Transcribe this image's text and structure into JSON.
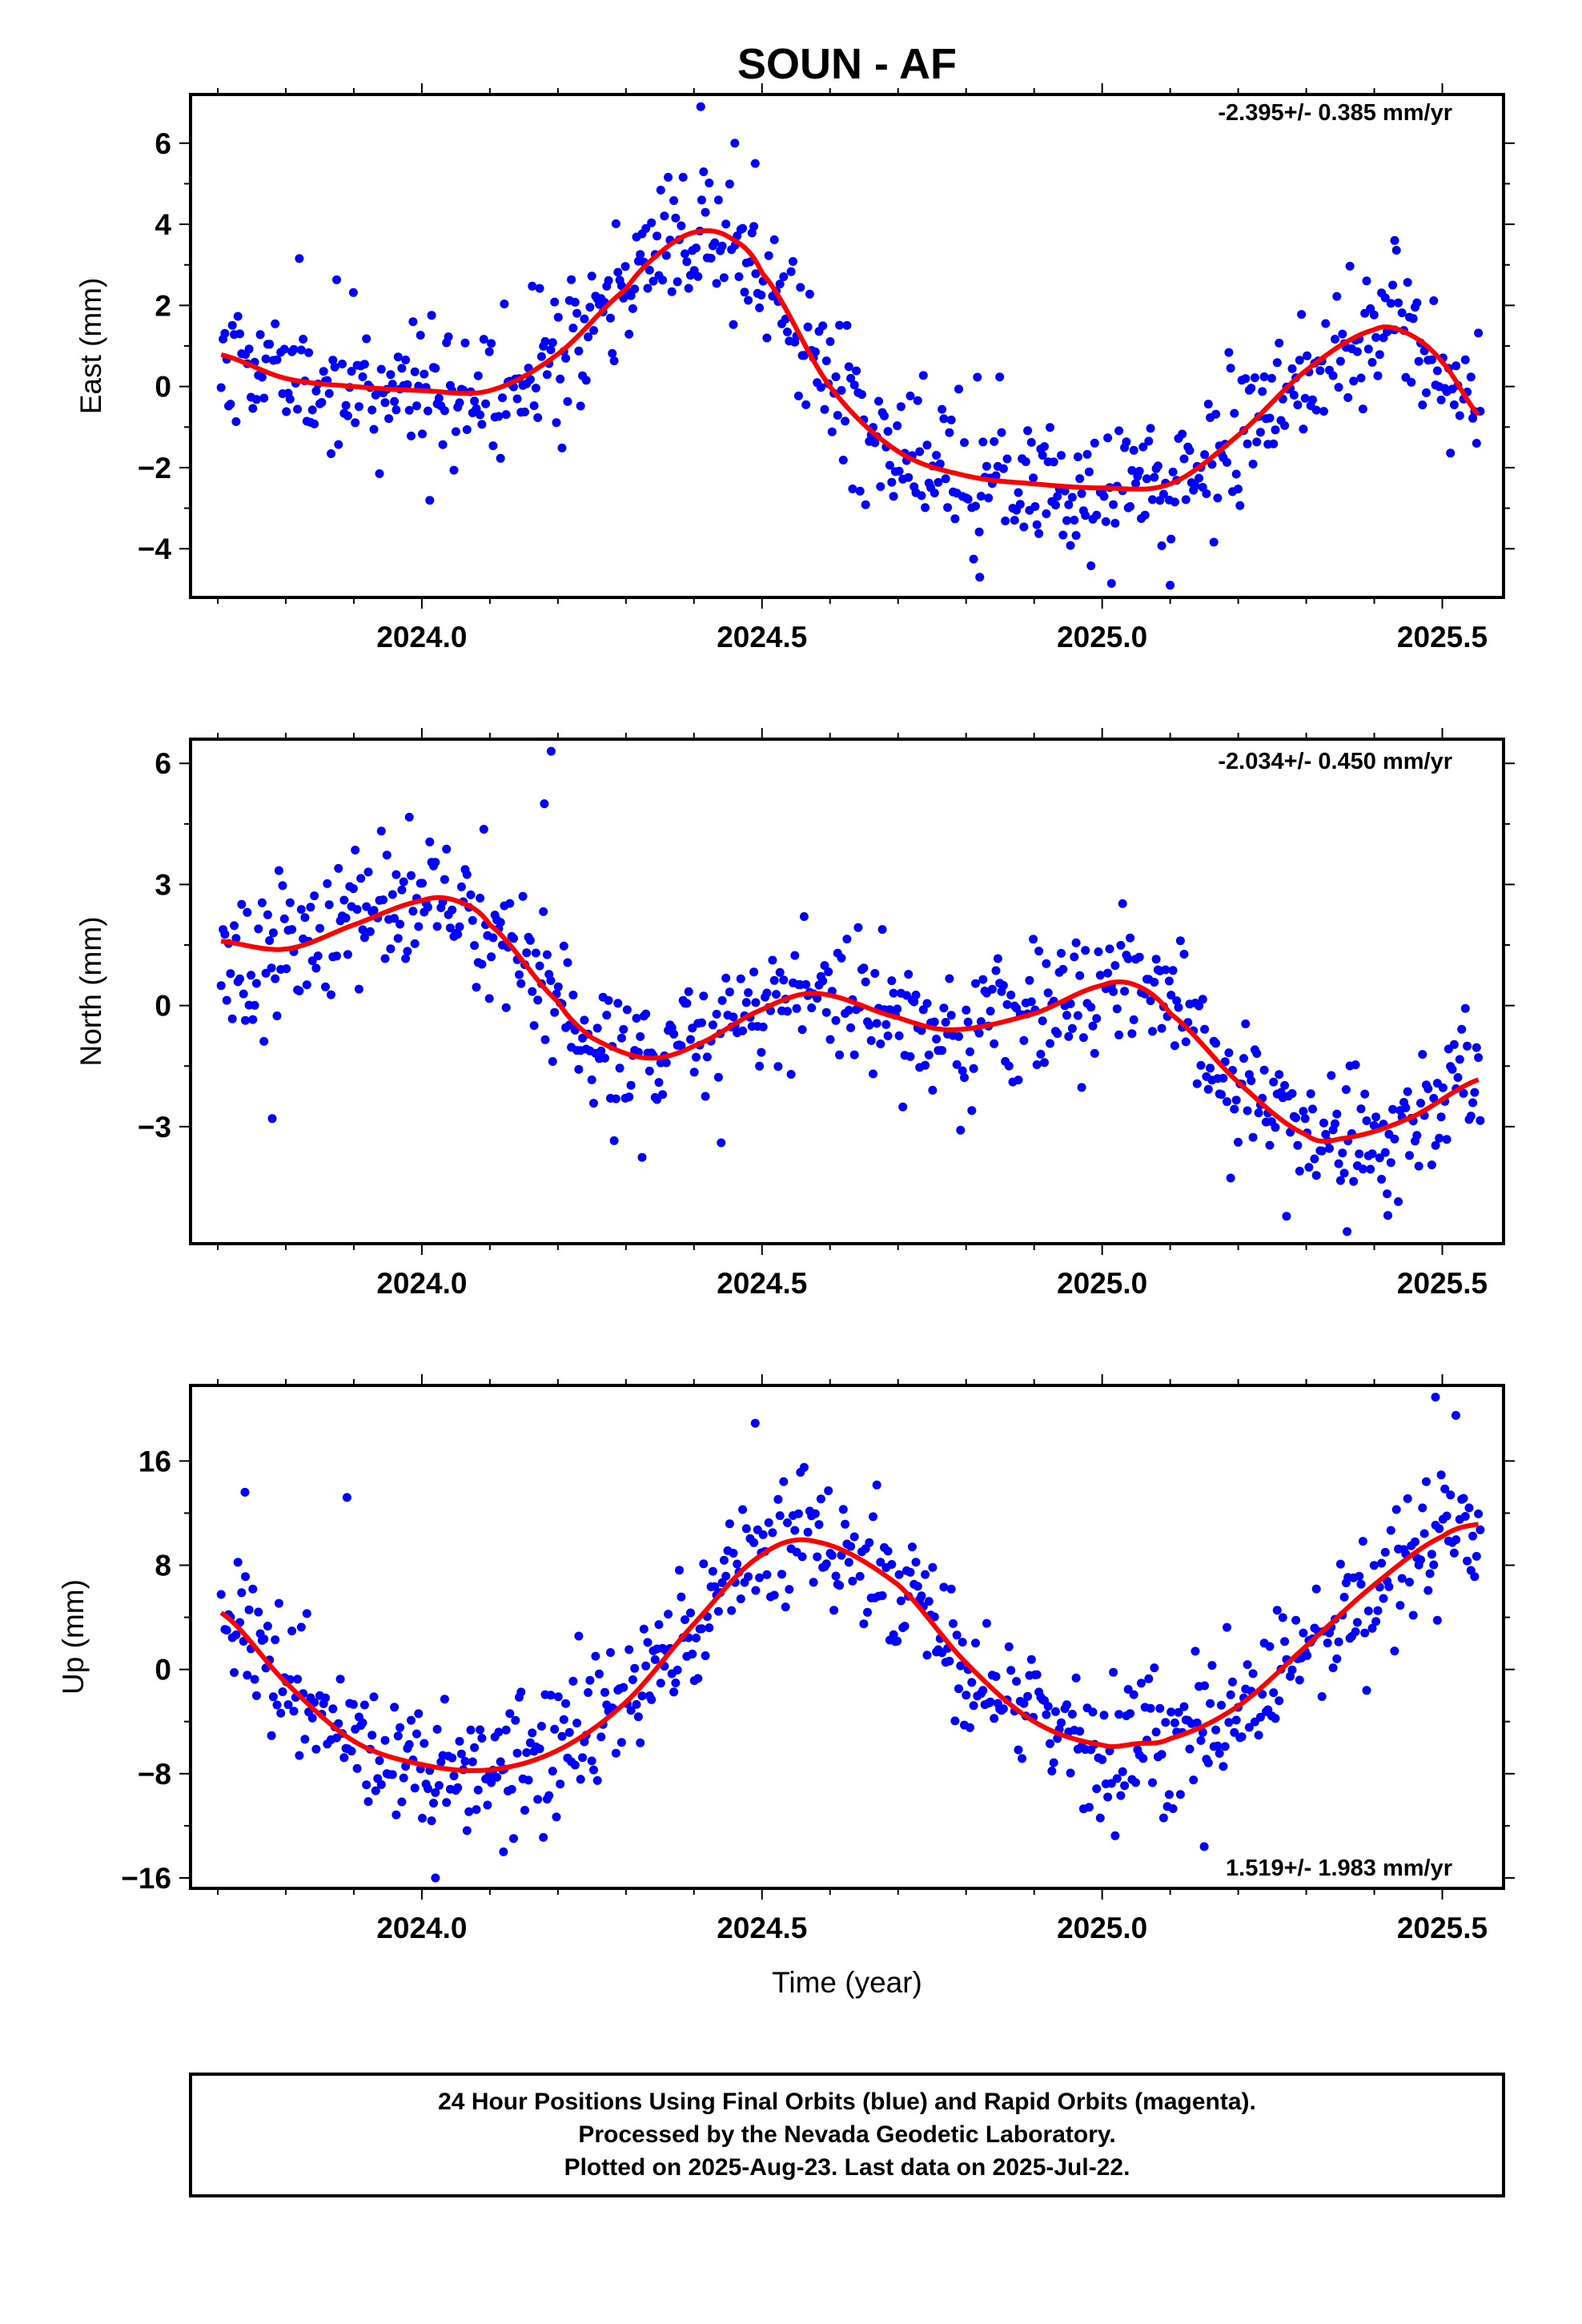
{
  "title": "SOUN - AF",
  "colors": {
    "final_orbits": "#0000ff",
    "fit": "#ff0000"
  },
  "footer": {
    "line1": "24 Hour Positions Using Final Orbits (blue) and Rapid Orbits (magenta).",
    "line2": "Processed by the Nevada Geodetic Laboratory.",
    "line3": "Plotted on 2025-Aug-23. Last data on 2025-Jul-22."
  },
  "chart_data": [
    {
      "type": "scatter",
      "ylabel": "East (mm)",
      "xlabel": "",
      "rate_label": "-2.395+/- 0.385 mm/yr",
      "xlim": [
        2023.66,
        2025.59
      ],
      "ylim": [
        -5.2,
        7.2
      ],
      "xticks": [
        "2024.0",
        "2024.5",
        "2025.0",
        "2025.5"
      ],
      "yticks": [
        6,
        4,
        2,
        0,
        -2,
        -4
      ],
      "yticklabels": [
        "6",
        "4",
        "2",
        "0",
        "−2",
        "−4"
      ],
      "fit_knots": {
        "x": [
          2023.7,
          2023.8,
          2023.9,
          2024.0,
          2024.1,
          2024.2,
          2024.3,
          2024.35,
          2024.4,
          2024.45,
          2024.5,
          2024.6,
          2024.7,
          2024.8,
          2024.9,
          2025.0,
          2025.1,
          2025.2,
          2025.3,
          2025.4,
          2025.45,
          2025.5,
          2025.56
        ],
        "y": [
          0.8,
          0.2,
          0.0,
          -0.1,
          -0.1,
          0.8,
          2.4,
          3.3,
          3.8,
          3.7,
          2.8,
          0.0,
          -1.6,
          -2.2,
          -2.4,
          -2.5,
          -2.4,
          -1.2,
          0.4,
          1.4,
          1.3,
          0.6,
          -0.8
        ]
      },
      "scatter": {
        "noise": 0.85,
        "outliers": [
          [
            2024.41,
            6.9
          ],
          [
            2024.46,
            6.0
          ],
          [
            2024.49,
            5.5
          ],
          [
            2025.43,
            3.6
          ],
          [
            2025.1,
            -4.9
          ],
          [
            2024.82,
            -4.7
          ]
        ],
        "seed": 11
      }
    },
    {
      "type": "scatter",
      "ylabel": "North (mm)",
      "xlabel": "",
      "rate_label": "-2.034+/- 0.450 mm/yr",
      "xlim": [
        2023.66,
        2025.59
      ],
      "ylim": [
        -5.9,
        6.6
      ],
      "xticks": [
        "2024.0",
        "2024.5",
        "2025.0",
        "2025.5"
      ],
      "yticks": [
        6,
        3,
        0,
        -3
      ],
      "yticklabels": [
        "6",
        "3",
        "0",
        "−3"
      ],
      "fit_knots": {
        "x": [
          2023.7,
          2023.8,
          2023.9,
          2024.0,
          2024.05,
          2024.1,
          2024.2,
          2024.25,
          2024.33,
          2024.4,
          2024.5,
          2024.58,
          2024.7,
          2024.78,
          2024.9,
          2025.0,
          2025.05,
          2025.1,
          2025.2,
          2025.3,
          2025.35,
          2025.45,
          2025.56
        ],
        "y": [
          1.6,
          1.4,
          2.0,
          2.6,
          2.6,
          2.0,
          0.1,
          -0.8,
          -1.3,
          -1.0,
          -0.1,
          0.3,
          -0.3,
          -0.6,
          -0.2,
          0.5,
          0.5,
          -0.2,
          -1.9,
          -3.2,
          -3.3,
          -2.8,
          -1.8
        ]
      },
      "scatter": {
        "noise": 0.85,
        "outliers": [
          [
            2024.19,
            6.3
          ],
          [
            2024.18,
            5.0
          ],
          [
            2024.44,
            -3.4
          ],
          [
            2023.78,
            -2.8
          ],
          [
            2025.36,
            -5.6
          ],
          [
            2025.42,
            -5.2
          ]
        ],
        "seed": 23
      }
    },
    {
      "type": "scatter",
      "ylabel": "Up (mm)",
      "xlabel": "Time (year)",
      "rate_label": "1.519+/- 1.983 mm/yr",
      "xlim": [
        2023.66,
        2025.59
      ],
      "ylim": [
        -16.8,
        21.8
      ],
      "xticks": [
        "2024.0",
        "2024.5",
        "2025.0",
        "2025.5"
      ],
      "yticks": [
        16,
        8,
        0,
        -8,
        -16
      ],
      "yticklabels": [
        "16",
        "8",
        "0",
        "−8",
        "−16"
      ],
      "fit_knots": {
        "x": [
          2023.7,
          2023.8,
          2023.9,
          2024.0,
          2024.1,
          2024.2,
          2024.3,
          2024.4,
          2024.5,
          2024.58,
          2024.7,
          2024.8,
          2024.9,
          2025.0,
          2025.05,
          2025.1,
          2025.2,
          2025.3,
          2025.4,
          2025.5,
          2025.56
        ],
        "y": [
          4.5,
          -1.0,
          -5.5,
          -7.3,
          -7.7,
          -6.2,
          -2.5,
          3.5,
          8.8,
          9.8,
          6.5,
          0.5,
          -4.0,
          -5.8,
          -5.7,
          -5.3,
          -2.8,
          1.8,
          6.5,
          10.2,
          11.2
        ]
      },
      "scatter": {
        "noise": 2.6,
        "outliers": [
          [
            2025.49,
            20.9
          ],
          [
            2024.49,
            18.9
          ],
          [
            2025.52,
            19.5
          ],
          [
            2023.89,
            13.2
          ],
          [
            2023.74,
            13.6
          ],
          [
            2025.15,
            -13.6
          ],
          [
            2024.12,
            -14.0
          ],
          [
            2024.02,
            -16.0
          ]
        ],
        "seed": 37
      }
    }
  ]
}
